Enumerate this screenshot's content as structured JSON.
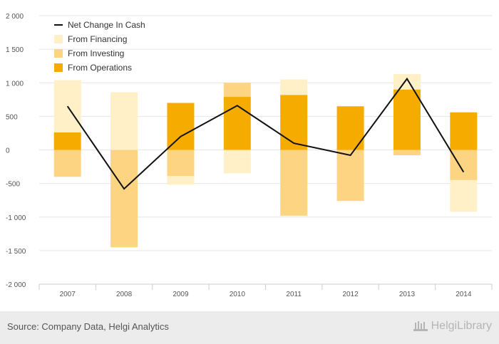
{
  "footer": {
    "source": "Source: Company Data, Helgi Analytics",
    "logo_text": "HelgiLibrary"
  },
  "colors": {
    "operations": "#f5ab00",
    "investing": "#fdd582",
    "financing": "#fff0c8",
    "net_change": "#111111",
    "grid": "#e6e6e6",
    "axis": "#cccccc"
  },
  "chart_data": {
    "type": "bar",
    "stacked": true,
    "categories": [
      "2007",
      "2008",
      "2009",
      "2010",
      "2011",
      "2012",
      "2013",
      "2014"
    ],
    "series": [
      {
        "name": "From Operations",
        "type": "bar",
        "values": [
          260,
          0,
          700,
          790,
          820,
          650,
          900,
          560
        ]
      },
      {
        "name": "From Investing",
        "type": "bar",
        "values": [
          -400,
          -1450,
          -390,
          210,
          -980,
          -760,
          -80,
          -450
        ]
      },
      {
        "name": "From Financing",
        "type": "bar",
        "values": [
          780,
          860,
          -130,
          -350,
          230,
          0,
          230,
          -470
        ]
      },
      {
        "name": "Net Change In Cash",
        "type": "line",
        "values": [
          650,
          -580,
          200,
          660,
          100,
          -80,
          1060,
          -330
        ]
      }
    ],
    "ylim": [
      -2000,
      2000
    ],
    "yticks": [
      -2000,
      -1500,
      -1000,
      -500,
      0,
      500,
      1000,
      1500,
      2000
    ],
    "ytick_labels": [
      "-2 000",
      "-1 500",
      "-1 000",
      "-500",
      "0",
      "500",
      "1 000",
      "1 500",
      "2 000"
    ],
    "grid": true,
    "legend_position": "top-left",
    "legend_items": [
      "Net Change In Cash",
      "From Financing",
      "From Investing",
      "From Operations"
    ]
  }
}
